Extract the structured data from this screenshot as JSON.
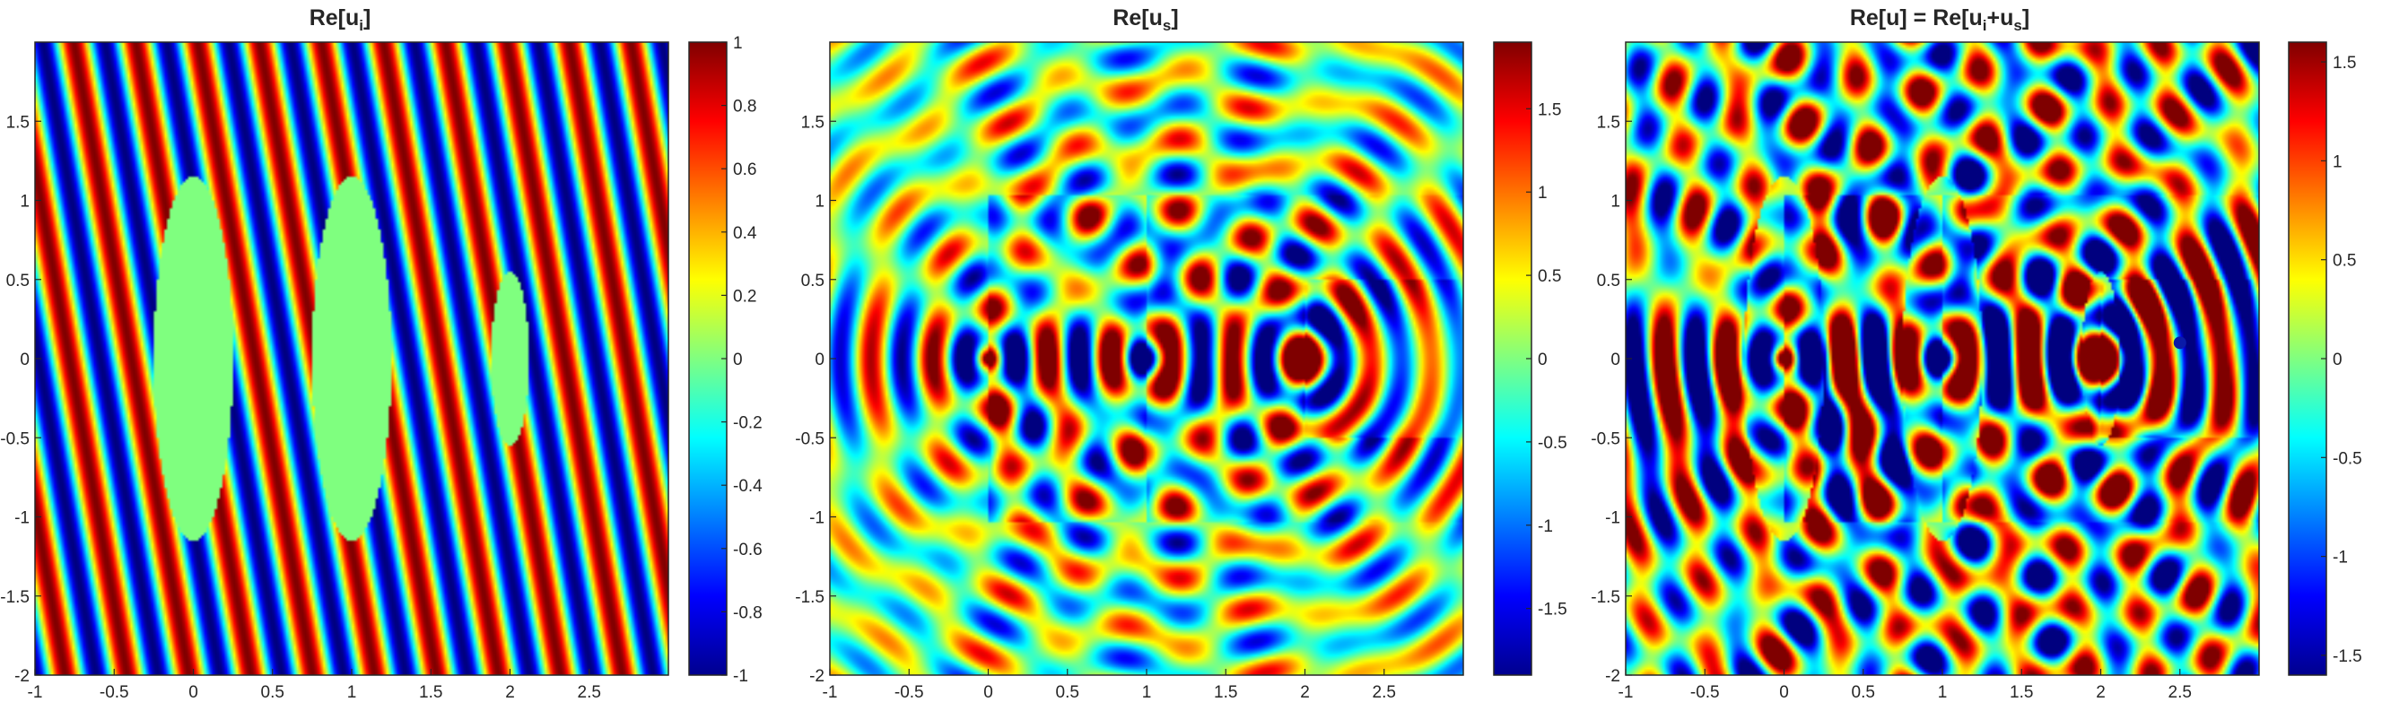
{
  "chart_data": [
    {
      "type": "heatmap",
      "title": "Re[u",
      "title_sub": "i",
      "title_tail": "]",
      "colormap": "jet",
      "xlim": [
        -1,
        3
      ],
      "ylim": [
        -2,
        2
      ],
      "xticks": [
        -1,
        -0.5,
        0,
        0.5,
        1,
        1.5,
        2,
        2.5
      ],
      "xtick_labels": [
        "-1",
        "-0.5",
        "0",
        "0.5",
        "1",
        "1.5",
        "2",
        "2.5"
      ],
      "yticks": [
        1.5,
        1,
        0.5,
        0,
        -0.5,
        -1,
        -1.5,
        -2
      ],
      "ytick_labels": [
        "1.5",
        "1",
        "0.5",
        "0",
        "-0.5",
        "-1",
        "-1.5",
        "-2"
      ],
      "clim": [
        -1,
        1
      ],
      "colorbar_ticks": [
        1,
        0.8,
        0.6,
        0.4,
        0.2,
        0,
        -0.2,
        -0.4,
        -0.6,
        -0.8,
        -1
      ],
      "colorbar_tick_labels": [
        "1",
        "0.8",
        "0.6",
        "0.4",
        "0.2",
        "0",
        "-0.2",
        "-0.4",
        "-0.6",
        "-0.8",
        "-1"
      ],
      "field": "incident",
      "scatterers": [
        {
          "cx": 0,
          "cy": 0,
          "rx": 0.25,
          "ry": 1.15
        },
        {
          "cx": 1,
          "cy": 0,
          "rx": 0.25,
          "ry": 1.15
        },
        {
          "cx": 2,
          "cy": 0,
          "rx": 0.12,
          "ry": 0.55
        }
      ]
    },
    {
      "type": "heatmap",
      "title": "Re[u",
      "title_sub": "s",
      "title_tail": "]",
      "colormap": "jet",
      "xlim": [
        -1,
        3
      ],
      "ylim": [
        -2,
        2
      ],
      "xticks": [
        -1,
        -0.5,
        0,
        0.5,
        1,
        1.5,
        2,
        2.5
      ],
      "xtick_labels": [
        "-1",
        "-0.5",
        "0",
        "0.5",
        "1",
        "1.5",
        "2",
        "2.5"
      ],
      "yticks": [
        1.5,
        1,
        0.5,
        0,
        -0.5,
        -1,
        -1.5,
        -2
      ],
      "ytick_labels": [
        "1.5",
        "1",
        "0.5",
        "0",
        "-0.5",
        "-1",
        "-1.5",
        "-2"
      ],
      "clim": [
        -1.9,
        1.9
      ],
      "colorbar_ticks": [
        1.5,
        1,
        0.5,
        0,
        -0.5,
        -1,
        -1.5
      ],
      "colorbar_tick_labels": [
        "1.5",
        "1",
        "0.5",
        "0",
        "-0.5",
        "-1",
        "-1.5"
      ],
      "field": "scattered",
      "scatterers": [
        {
          "cx": 0,
          "cy": 0,
          "rx": 0.25,
          "ry": 1.15
        },
        {
          "cx": 1,
          "cy": 0,
          "rx": 0.25,
          "ry": 1.15
        },
        {
          "cx": 2,
          "cy": 0,
          "rx": 0.12,
          "ry": 0.55
        }
      ]
    },
    {
      "type": "heatmap",
      "title": "Re[u] = Re[u",
      "title_sub": "i",
      "title_mid": "+u",
      "title_sub2": "s",
      "title_tail": "]",
      "colormap": "jet",
      "xlim": [
        -1,
        3
      ],
      "ylim": [
        -2,
        2
      ],
      "xticks": [
        -1,
        -0.5,
        0,
        0.5,
        1,
        1.5,
        2,
        2.5
      ],
      "xtick_labels": [
        "-1",
        "-0.5",
        "0",
        "0.5",
        "1",
        "1.5",
        "2",
        "2.5"
      ],
      "yticks": [
        1.5,
        1,
        0.5,
        0,
        -0.5,
        -1,
        -1.5,
        -2
      ],
      "ytick_labels": [
        "1.5",
        "1",
        "0.5",
        "0",
        "-0.5",
        "-1",
        "-1.5",
        "-2"
      ],
      "clim": [
        -1.6,
        1.6
      ],
      "colorbar_ticks": [
        1.5,
        1,
        0.5,
        0,
        -0.5,
        -1,
        -1.5
      ],
      "colorbar_tick_labels": [
        "1.5",
        "1",
        "0.5",
        "0",
        "-0.5",
        "-1",
        "-1.5"
      ],
      "field": "total",
      "scatterers": [
        {
          "cx": 0,
          "cy": 0,
          "rx": 0.25,
          "ry": 1.15
        },
        {
          "cx": 1,
          "cy": 0,
          "rx": 0.25,
          "ry": 1.15
        },
        {
          "cx": 2,
          "cy": 0,
          "rx": 0.12,
          "ry": 0.55
        }
      ],
      "marker_point": {
        "x": 2.5,
        "y": 0.1
      }
    }
  ]
}
